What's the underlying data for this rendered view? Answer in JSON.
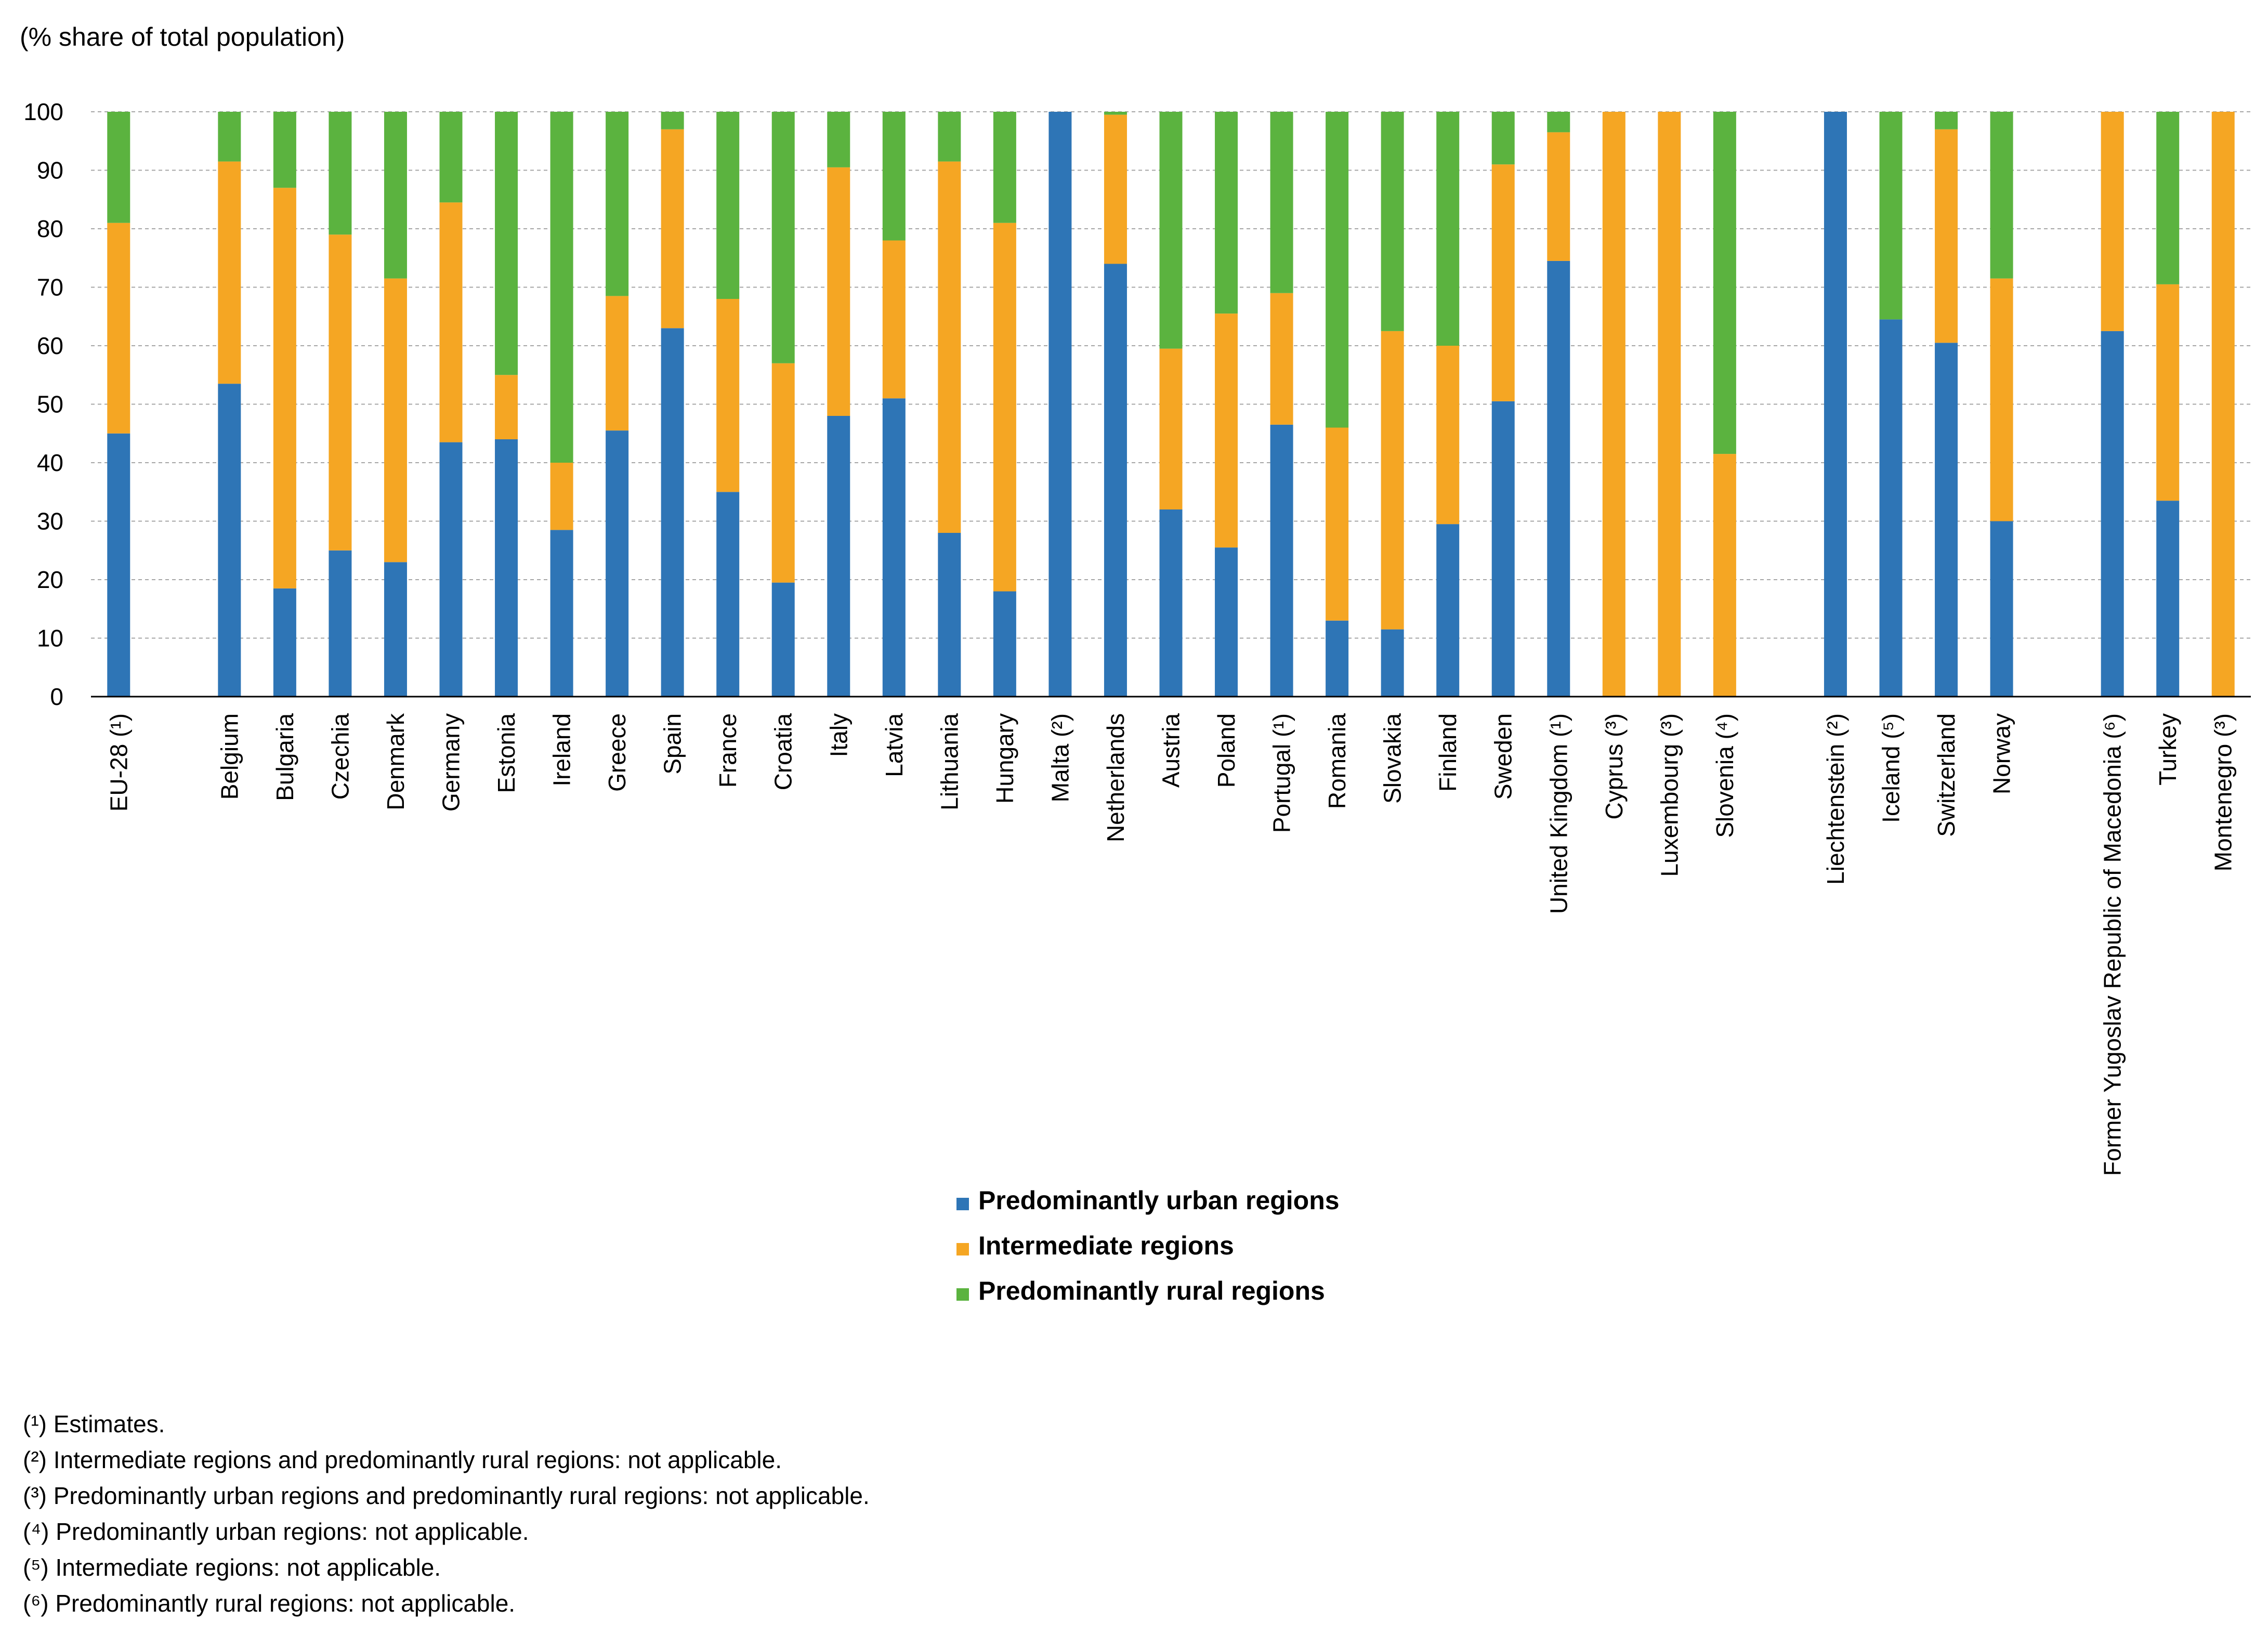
{
  "chart_data": {
    "type": "stacked-bar",
    "unit_label": "(% share of total population)",
    "ylim": [
      0,
      100
    ],
    "yticks": [
      0,
      10,
      20,
      30,
      40,
      50,
      60,
      70,
      80,
      90,
      100
    ],
    "grid": true,
    "legend_position": "center-bottom",
    "series": [
      {
        "name": "Predominantly urban regions",
        "color": "#2e75b6"
      },
      {
        "name": "Intermediate regions",
        "color": "#f5a623"
      },
      {
        "name": "Predominantly rural regions",
        "color": "#5bb33f"
      }
    ],
    "categories": [
      {
        "label": "EU-28 (¹)",
        "urban": 45,
        "intermediate": 36,
        "rural": 19
      },
      {
        "label": "",
        "gap": true
      },
      {
        "label": "Belgium",
        "urban": 53.5,
        "intermediate": 38,
        "rural": 8.5
      },
      {
        "label": "Bulgaria",
        "urban": 18.5,
        "intermediate": 68.5,
        "rural": 13
      },
      {
        "label": "Czechia",
        "urban": 25,
        "intermediate": 54,
        "rural": 21
      },
      {
        "label": "Denmark",
        "urban": 23,
        "intermediate": 48.5,
        "rural": 28.5
      },
      {
        "label": "Germany",
        "urban": 43.5,
        "intermediate": 41,
        "rural": 15.5
      },
      {
        "label": "Estonia",
        "urban": 44,
        "intermediate": 11,
        "rural": 45
      },
      {
        "label": "Ireland",
        "urban": 28.5,
        "intermediate": 11.5,
        "rural": 60
      },
      {
        "label": "Greece",
        "urban": 45.5,
        "intermediate": 23,
        "rural": 31.5
      },
      {
        "label": "Spain",
        "urban": 63,
        "intermediate": 34,
        "rural": 3
      },
      {
        "label": "France",
        "urban": 35,
        "intermediate": 33,
        "rural": 32
      },
      {
        "label": "Croatia",
        "urban": 19.5,
        "intermediate": 37.5,
        "rural": 43
      },
      {
        "label": "Italy",
        "urban": 48,
        "intermediate": 42.5,
        "rural": 9.5
      },
      {
        "label": "Latvia",
        "urban": 51,
        "intermediate": 27,
        "rural": 22
      },
      {
        "label": "Lithuania",
        "urban": 28,
        "intermediate": 63.5,
        "rural": 8.5
      },
      {
        "label": "Hungary",
        "urban": 18,
        "intermediate": 63,
        "rural": 19
      },
      {
        "label": "Malta (²)",
        "urban": 100,
        "intermediate": 0,
        "rural": 0
      },
      {
        "label": "Netherlands",
        "urban": 74,
        "intermediate": 25.5,
        "rural": 0.5
      },
      {
        "label": "Austria",
        "urban": 32,
        "intermediate": 27.5,
        "rural": 40.5
      },
      {
        "label": "Poland",
        "urban": 25.5,
        "intermediate": 40,
        "rural": 34.5
      },
      {
        "label": "Portugal (¹)",
        "urban": 46.5,
        "intermediate": 22.5,
        "rural": 31
      },
      {
        "label": "Romania",
        "urban": 13,
        "intermediate": 33,
        "rural": 54
      },
      {
        "label": "Slovakia",
        "urban": 11.5,
        "intermediate": 51,
        "rural": 37.5
      },
      {
        "label": "Finland",
        "urban": 29.5,
        "intermediate": 30.5,
        "rural": 40
      },
      {
        "label": "Sweden",
        "urban": 50.5,
        "intermediate": 40.5,
        "rural": 9
      },
      {
        "label": "United Kingdom (¹)",
        "urban": 74.5,
        "intermediate": 22,
        "rural": 3.5
      },
      {
        "label": "Cyprus (³)",
        "urban": 0,
        "intermediate": 100,
        "rural": 0
      },
      {
        "label": "Luxembourg (³)",
        "urban": 0,
        "intermediate": 100,
        "rural": 0
      },
      {
        "label": "Slovenia (⁴)",
        "urban": 0,
        "intermediate": 41.5,
        "rural": 58.5
      },
      {
        "label": "",
        "gap": true
      },
      {
        "label": "Liechtenstein (²)",
        "urban": 100,
        "intermediate": 0,
        "rural": 0
      },
      {
        "label": "Iceland (⁵)",
        "urban": 64.5,
        "intermediate": 0,
        "rural": 35.5
      },
      {
        "label": "Switzerland",
        "urban": 60.5,
        "intermediate": 36.5,
        "rural": 3
      },
      {
        "label": "Norway",
        "urban": 30,
        "intermediate": 41.5,
        "rural": 28.5
      },
      {
        "label": "",
        "gap": true
      },
      {
        "label": "Former Yugoslav Republic of Macedonia (⁶)",
        "urban": 62.5,
        "intermediate": 37.5,
        "rural": 0
      },
      {
        "label": "Turkey",
        "urban": 33.5,
        "intermediate": 37,
        "rural": 29.5
      },
      {
        "label": "Montenegro (³)",
        "urban": 0,
        "intermediate": 100,
        "rural": 0
      }
    ]
  },
  "footnotes": [
    "(¹) Estimates.",
    "(²) Intermediate regions and predominantly rural regions: not applicable.",
    "(³) Predominantly urban regions and predominantly rural regions: not applicable.",
    "(⁴) Predominantly urban regions: not applicable.",
    "(⁵) Intermediate regions: not applicable.",
    "(⁶) Predominantly rural regions: not applicable."
  ]
}
